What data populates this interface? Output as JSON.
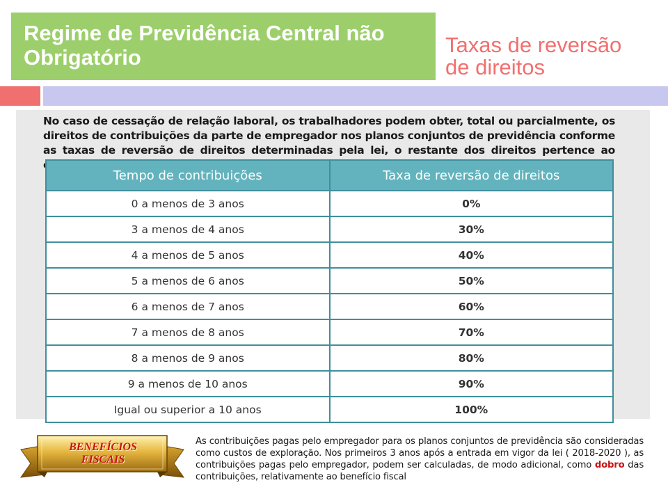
{
  "header": {
    "title_line1": "Regime de Previdência Central não",
    "title_line2": "Obrigatório",
    "subtitle_line1": "Taxas de reversão",
    "subtitle_line2": "de direitos"
  },
  "intro": "No caso de cessação de relação laboral, os trabalhadores podem obter, total ou parcialmente, os direitos de contribuições da parte de empregador nos planos conjuntos de previdência conforme as taxas de reversão de direitos determinadas pela lei, o restante dos direitos pertence ao empregador :",
  "table": {
    "headers": [
      "Tempo de contribuições",
      "Taxa de reversão de direitos"
    ],
    "rows": [
      [
        "0 a menos de 3 anos",
        "0%"
      ],
      [
        "3 a menos de 4 anos",
        "30%"
      ],
      [
        "4 a menos de 5 anos",
        "40%"
      ],
      [
        "5 a menos de 6 anos",
        "50%"
      ],
      [
        "6 a menos de 7 anos",
        "60%"
      ],
      [
        "7 a menos de 8 anos",
        "70%"
      ],
      [
        "8 a menos de 9 anos",
        "80%"
      ],
      [
        "9 a menos de 10 anos",
        "90%"
      ],
      [
        "Igual ou superior a 10 anos",
        "100%"
      ]
    ]
  },
  "badge": {
    "line1": "BENEFÍCIOS",
    "line2": "FISCAIS"
  },
  "note": {
    "before": "As contribuições pagas pelo empregador para os planos conjuntos de previdência são consideradas como custos de exploração. Nos primeiros 3 anos após a entrada em vigor da lei ( 2018-2020 ), as contribuições pagas pelo empregador, podem ser calculadas, de modo adicional, como ",
    "highlight": "dobro",
    "after": " das contribuições, relativamente ao benefício fiscal"
  },
  "colors": {
    "title_bg": "#9ccf6b",
    "subtitle": "#f26f6f",
    "table_header": "#62b3bd",
    "highlight": "#c81414"
  }
}
